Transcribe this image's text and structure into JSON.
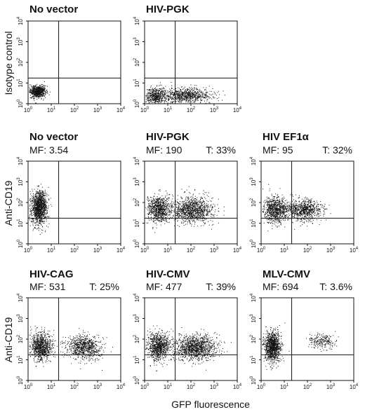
{
  "figure": {
    "row_labels": [
      "Isotype control",
      "Anti-CD19",
      "Anti-CD19"
    ],
    "x_axis_label": "GFP fluorescence"
  },
  "chart_data": [
    {
      "type": "scatter",
      "title": "No vector",
      "stats": {
        "mf": "",
        "t": ""
      },
      "xlim": [
        1,
        10000
      ],
      "ylim": [
        1,
        10000
      ],
      "log": true,
      "populations": [
        {
          "x": 2.5,
          "y": 4,
          "sx": 0.18,
          "sy": 0.14,
          "n": 700
        }
      ]
    },
    {
      "type": "scatter",
      "title": "HIV-PGK",
      "stats": {
        "mf": "",
        "t": ""
      },
      "xlim": [
        1,
        10000
      ],
      "ylim": [
        1,
        10000
      ],
      "log": true,
      "populations": [
        {
          "x": 3,
          "y": 2.5,
          "sx": 0.22,
          "sy": 0.2,
          "n": 500
        },
        {
          "x": 60,
          "y": 2.5,
          "sx": 0.55,
          "sy": 0.18,
          "n": 800
        }
      ]
    },
    {
      "type": "scatter",
      "title": "",
      "stats": {
        "mf": "",
        "t": ""
      },
      "xlim": [
        1,
        10000
      ],
      "ylim": [
        1,
        10000
      ],
      "log": true,
      "populations": []
    },
    {
      "type": "scatter",
      "title": "No vector",
      "stats": {
        "mf": "MF: 3.54",
        "t": ""
      },
      "xlim": [
        1,
        10000
      ],
      "ylim": [
        1,
        10000
      ],
      "log": true,
      "populations": [
        {
          "x": 3,
          "y": 60,
          "sx": 0.16,
          "sy": 0.38,
          "n": 1300
        }
      ]
    },
    {
      "type": "scatter",
      "title": "HIV-PGK",
      "stats": {
        "mf": "MF: 190",
        "t": "T: 33%"
      },
      "xlim": [
        1,
        10000
      ],
      "ylim": [
        1,
        10000
      ],
      "log": true,
      "populations": [
        {
          "x": 4,
          "y": 50,
          "sx": 0.25,
          "sy": 0.32,
          "n": 800
        },
        {
          "x": 120,
          "y": 45,
          "sx": 0.42,
          "sy": 0.3,
          "n": 1100
        }
      ]
    },
    {
      "type": "scatter",
      "title": "HIV EF1α",
      "stats": {
        "mf": "MF: 95",
        "t": "T: 32%"
      },
      "xlim": [
        1,
        10000
      ],
      "ylim": [
        1,
        10000
      ],
      "log": true,
      "populations": [
        {
          "x": 4,
          "y": 45,
          "sx": 0.25,
          "sy": 0.32,
          "n": 800
        },
        {
          "x": 70,
          "y": 45,
          "sx": 0.38,
          "sy": 0.25,
          "n": 800
        }
      ]
    },
    {
      "type": "scatter",
      "title": "HIV-CAG",
      "stats": {
        "mf": "MF: 531",
        "t": "T: 25%"
      },
      "xlim": [
        1,
        10000
      ],
      "ylim": [
        1,
        10000
      ],
      "log": true,
      "populations": [
        {
          "x": 3.5,
          "y": 45,
          "sx": 0.23,
          "sy": 0.33,
          "n": 900
        },
        {
          "x": 250,
          "y": 40,
          "sx": 0.38,
          "sy": 0.3,
          "n": 800
        }
      ]
    },
    {
      "type": "scatter",
      "title": "HIV-CMV",
      "stats": {
        "mf": "MF: 477",
        "t": "T: 39%"
      },
      "xlim": [
        1,
        10000
      ],
      "ylim": [
        1,
        10000
      ],
      "log": true,
      "populations": [
        {
          "x": 4,
          "y": 45,
          "sx": 0.24,
          "sy": 0.33,
          "n": 900
        },
        {
          "x": 150,
          "y": 40,
          "sx": 0.45,
          "sy": 0.3,
          "n": 1200
        }
      ]
    },
    {
      "type": "scatter",
      "title": "MLV-CMV",
      "stats": {
        "mf": "MF: 694",
        "t": "T: 3.6%"
      },
      "xlim": [
        1,
        10000
      ],
      "ylim": [
        1,
        10000
      ],
      "log": true,
      "populations": [
        {
          "x": 3,
          "y": 45,
          "sx": 0.17,
          "sy": 0.36,
          "n": 1100
        },
        {
          "x": 400,
          "y": 80,
          "sx": 0.32,
          "sy": 0.18,
          "n": 220
        }
      ]
    }
  ]
}
